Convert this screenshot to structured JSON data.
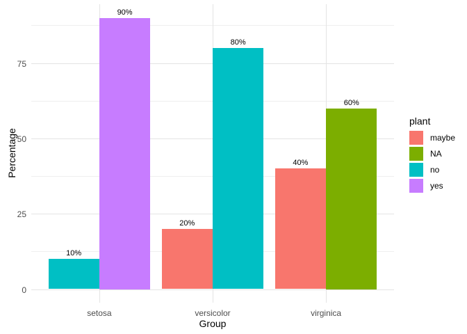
{
  "chart_data": {
    "type": "bar",
    "title": "",
    "xlabel": "Group",
    "ylabel": "Percentage",
    "categories": [
      "setosa",
      "versicolor",
      "virginica"
    ],
    "palette": {
      "maybe": "#F8766D",
      "NA": "#7CAE00",
      "no": "#00BFC4",
      "yes": "#C77CFF"
    },
    "bars": [
      {
        "group": "setosa",
        "series": "no",
        "value": 10,
        "label": "10%"
      },
      {
        "group": "setosa",
        "series": "yes",
        "value": 90,
        "label": "90%"
      },
      {
        "group": "versicolor",
        "series": "maybe",
        "value": 20,
        "label": "20%"
      },
      {
        "group": "versicolor",
        "series": "no",
        "value": 80,
        "label": "80%"
      },
      {
        "group": "virginica",
        "series": "maybe",
        "value": 40,
        "label": "40%"
      },
      {
        "group": "virginica",
        "series": "NA",
        "value": 60,
        "label": "60%"
      }
    ],
    "y_axis": {
      "ticks": [
        0,
        25,
        50,
        75
      ],
      "data_range": [
        0,
        90
      ]
    },
    "legend": {
      "title": "plant",
      "position": "right",
      "entries": [
        {
          "label": "maybe",
          "color": "#F8766D"
        },
        {
          "label": "NA",
          "color": "#7CAE00"
        },
        {
          "label": "no",
          "color": "#00BFC4"
        },
        {
          "label": "yes",
          "color": "#C77CFF"
        }
      ]
    },
    "grid": "on",
    "colors": {
      "background": "#FFFFFF",
      "grid_major": "#E4E4E4",
      "grid_minor": "#EFEFEF",
      "tick_label": "#4D4D4D",
      "text": "#000000"
    }
  }
}
